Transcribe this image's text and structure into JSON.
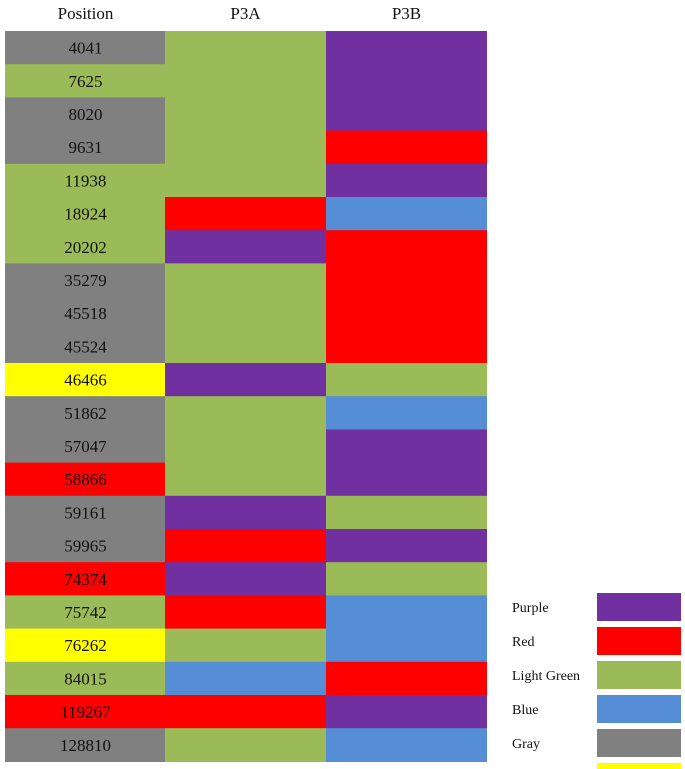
{
  "chart_data": {
    "type": "heatmap",
    "columns": [
      "Position",
      "P3A",
      "P3B"
    ],
    "rows": [
      {
        "position": "4041",
        "position_color": "Gray",
        "P3A": "Light Green",
        "P3B": "Purple"
      },
      {
        "position": "7625",
        "position_color": "Light Green",
        "P3A": "Light Green",
        "P3B": "Purple"
      },
      {
        "position": "8020",
        "position_color": "Gray",
        "P3A": "Light Green",
        "P3B": "Purple"
      },
      {
        "position": "9631",
        "position_color": "Gray",
        "P3A": "Light Green",
        "P3B": "Red"
      },
      {
        "position": "11938",
        "position_color": "Light Green",
        "P3A": "Light Green",
        "P3B": "Purple"
      },
      {
        "position": "18924",
        "position_color": "Light Green",
        "P3A": "Red",
        "P3B": "Blue"
      },
      {
        "position": "20202",
        "position_color": "Light Green",
        "P3A": "Purple",
        "P3B": "Red"
      },
      {
        "position": "35279",
        "position_color": "Gray",
        "P3A": "Light Green",
        "P3B": "Red"
      },
      {
        "position": "45518",
        "position_color": "Gray",
        "P3A": "Light Green",
        "P3B": "Red"
      },
      {
        "position": "45524",
        "position_color": "Gray",
        "P3A": "Light Green",
        "P3B": "Red"
      },
      {
        "position": "46466",
        "position_color": "Yellow",
        "P3A": "Purple",
        "P3B": "Light Green"
      },
      {
        "position": "51862",
        "position_color": "Gray",
        "P3A": "Light Green",
        "P3B": "Blue"
      },
      {
        "position": "57047",
        "position_color": "Gray",
        "P3A": "Light Green",
        "P3B": "Purple"
      },
      {
        "position": "58866",
        "position_color": "Red",
        "P3A": "Light Green",
        "P3B": "Purple"
      },
      {
        "position": "59161",
        "position_color": "Gray",
        "P3A": "Purple",
        "P3B": "Light Green"
      },
      {
        "position": "59965",
        "position_color": "Gray",
        "P3A": "Red",
        "P3B": "Purple"
      },
      {
        "position": "74374",
        "position_color": "Red",
        "P3A": "Purple",
        "P3B": "Light Green"
      },
      {
        "position": "75742",
        "position_color": "Light Green",
        "P3A": "Red",
        "P3B": "Blue"
      },
      {
        "position": "76262",
        "position_color": "Yellow",
        "P3A": "Light Green",
        "P3B": "Blue"
      },
      {
        "position": "84015",
        "position_color": "Light Green",
        "P3A": "Blue",
        "P3B": "Red"
      },
      {
        "position": "119267",
        "position_color": "Red",
        "P3A": "Red",
        "P3B": "Purple"
      },
      {
        "position": "128810",
        "position_color": "Gray",
        "P3A": "Light Green",
        "P3B": "Blue"
      }
    ],
    "legend": [
      {
        "label": "Purple",
        "color": "#7030a0"
      },
      {
        "label": "Red",
        "color": "#ff0000"
      },
      {
        "label": "Light Green",
        "color": "#9bbb59"
      },
      {
        "label": "Blue",
        "color": "#558ed5"
      },
      {
        "label": "Gray",
        "color": "#808080"
      },
      {
        "label": "Yellow",
        "color": "#ffff00"
      }
    ],
    "legend_position": "bottom-right"
  }
}
